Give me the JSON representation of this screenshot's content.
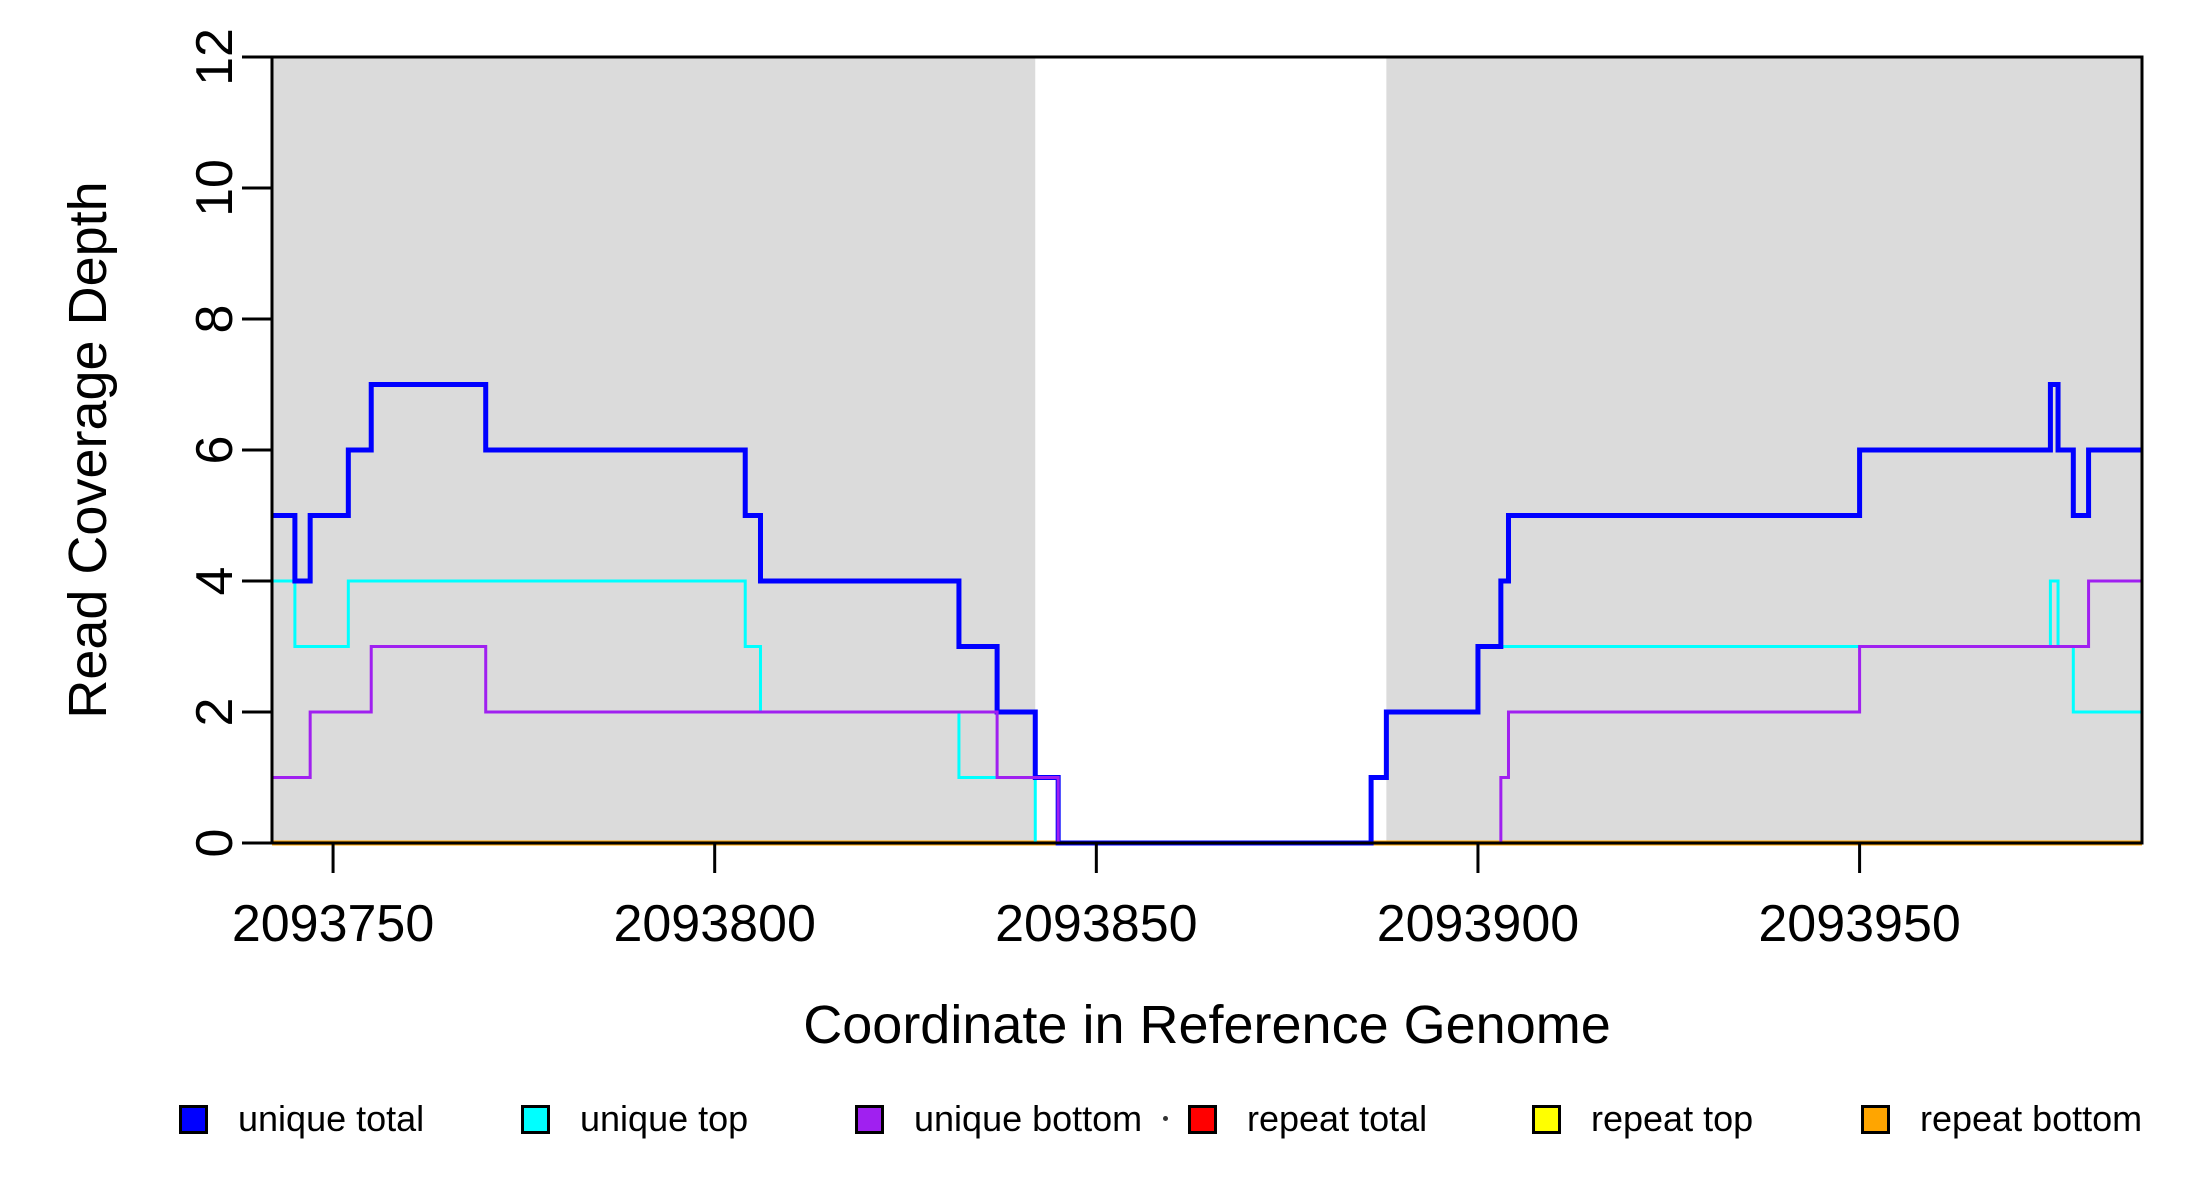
{
  "chart_data": {
    "type": "line",
    "line_style": "step-after",
    "title": "",
    "xlabel": "Coordinate in Reference Genome",
    "ylabel": "Read Coverage Depth",
    "xlim": [
      2093742,
      2093987
    ],
    "ylim": [
      0,
      12
    ],
    "x_ticks": [
      2093750,
      2093800,
      2093850,
      2093900,
      2093950
    ],
    "y_ticks": [
      0,
      2,
      4,
      6,
      8,
      10,
      12
    ],
    "grid": false,
    "legend_position": "bottom-horizontal",
    "shading_color": "#DBDBDB",
    "shaded_regions": [
      [
        2093742,
        2093842
      ],
      [
        2093888,
        2093987
      ]
    ],
    "series": [
      {
        "name": "repeat total",
        "color": "#FF0000",
        "width": 4,
        "steps": [
          [
            2093742,
            0
          ]
        ]
      },
      {
        "name": "repeat top",
        "color": "#FFFF00",
        "width": 3,
        "steps": [
          [
            2093742,
            0
          ]
        ]
      },
      {
        "name": "repeat bottom",
        "color": "#FFA500",
        "width": 5,
        "steps": [
          [
            2093742,
            0
          ]
        ]
      },
      {
        "name": "unique top",
        "color": "#00FFFF",
        "width": 3,
        "steps": [
          [
            2093742,
            4
          ],
          [
            2093745,
            3
          ],
          [
            2093752,
            4
          ],
          [
            2093804,
            3
          ],
          [
            2093806,
            2
          ],
          [
            2093832,
            1
          ],
          [
            2093842,
            0
          ],
          [
            2093886,
            1
          ],
          [
            2093888,
            2
          ],
          [
            2093900,
            3
          ],
          [
            2093975,
            4
          ],
          [
            2093976,
            3
          ],
          [
            2093978,
            2
          ]
        ]
      },
      {
        "name": "unique total",
        "color": "#0000FF",
        "width": 5,
        "steps": [
          [
            2093742,
            5
          ],
          [
            2093745,
            4
          ],
          [
            2093747,
            5
          ],
          [
            2093752,
            6
          ],
          [
            2093755,
            7
          ],
          [
            2093770,
            6
          ],
          [
            2093804,
            5
          ],
          [
            2093806,
            4
          ],
          [
            2093832,
            3
          ],
          [
            2093837,
            2
          ],
          [
            2093842,
            1
          ],
          [
            2093845,
            0
          ],
          [
            2093886,
            1
          ],
          [
            2093888,
            2
          ],
          [
            2093900,
            3
          ],
          [
            2093903,
            4
          ],
          [
            2093904,
            5
          ],
          [
            2093950,
            6
          ],
          [
            2093975,
            7
          ],
          [
            2093976,
            6
          ],
          [
            2093978,
            5
          ],
          [
            2093980,
            6
          ]
        ]
      },
      {
        "name": "unique bottom",
        "color": "#A020F0",
        "width": 3,
        "steps": [
          [
            2093742,
            1
          ],
          [
            2093747,
            2
          ],
          [
            2093755,
            3
          ],
          [
            2093770,
            2
          ],
          [
            2093837,
            1
          ],
          [
            2093845,
            0
          ],
          [
            2093903,
            1
          ],
          [
            2093904,
            2
          ],
          [
            2093950,
            3
          ],
          [
            2093980,
            4
          ]
        ]
      }
    ],
    "legend": [
      {
        "label": "unique total",
        "color": "#0000FF"
      },
      {
        "label": "unique top",
        "color": "#00FFFF"
      },
      {
        "label": "unique bottom",
        "color": "#A020F0"
      },
      {
        "label": "repeat total",
        "color": "#FF0000"
      },
      {
        "label": "repeat top",
        "color": "#FFFF00"
      },
      {
        "label": "repeat bottom",
        "color": "#FFA500"
      }
    ]
  }
}
